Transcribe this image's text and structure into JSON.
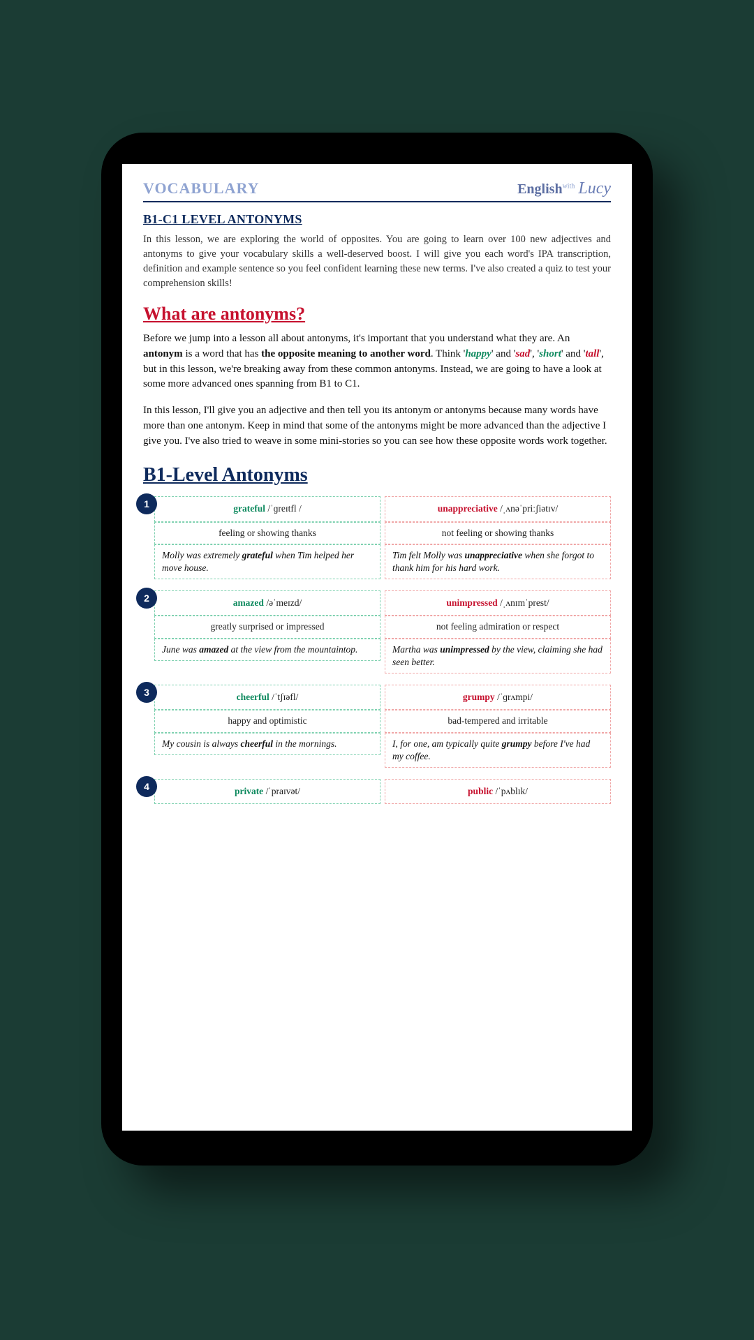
{
  "header": {
    "title": "VOCABULARY",
    "brand_main": "English",
    "brand_with": "with",
    "brand_name": "Lucy"
  },
  "page": {
    "title": "B1-C1 LEVEL ANTONYMS",
    "intro": "In this lesson, we are exploring the world of opposites. You are going to learn over 100 new adjectives and antonyms to give your vocabulary skills a well-deserved boost. I will give you each word's IPA transcription, definition and example sentence so you feel confident learning these new terms. I've also created a quiz to test your comprehension skills!"
  },
  "h_what": "What are antonyms?",
  "p1": {
    "a": "Before we jump into a lesson all about antonyms, it's important that you understand what they are. An ",
    "b": "antonym",
    "c": " is a word that has ",
    "d": "the opposite meaning to another word",
    "e": ". Think '",
    "happy": "happy",
    "f": "' and '",
    "sad": "sad",
    "g": "', '",
    "short": "short",
    "h": "' and '",
    "tall": "tall",
    "i": "', but in this lesson, we're breaking away from these common antonyms. Instead, we are going to have a look at some more advanced ones spanning from B1 to C1."
  },
  "p2": "In this lesson, I'll give you an adjective and then tell you its antonym or antonyms because many words have more than one antonym. Keep in mind that some of the antonyms might be more advanced than the adjective I give you. I've also tried to weave in some mini-stories so you can see how these opposite words work together.",
  "h_b1": "B1-Level Antonyms",
  "entries": [
    {
      "n": "1",
      "left": {
        "word": "grateful",
        "ipa": " /ˈɡreɪtfl / ",
        "def": "feeling or showing thanks",
        "ex_a": "Molly was extremely ",
        "ex_b": "grateful",
        "ex_c": " when Tim helped her move house."
      },
      "right": {
        "word": "unappreciative",
        "ipa": " /ˌʌnəˈpriːʃiətɪv/",
        "def": "not feeling or showing thanks",
        "ex_a": "Tim felt Molly was ",
        "ex_b": "unappreciative",
        "ex_c": " when she forgot to thank him for his hard work."
      }
    },
    {
      "n": "2",
      "left": {
        "word": "amazed",
        "ipa": " /əˈmeɪzd/",
        "def": "greatly surprised or impressed",
        "ex_a": "June was ",
        "ex_b": "amazed",
        "ex_c": " at the view from the mountaintop."
      },
      "right": {
        "word": "unimpressed",
        "ipa": " /ˌʌnɪmˈprest/",
        "def": "not feeling admiration or respect",
        "ex_a": "Martha was ",
        "ex_b": "unimpressed",
        "ex_c": " by the view, claiming she had seen better."
      }
    },
    {
      "n": "3",
      "left": {
        "word": "cheerful",
        "ipa": " /ˈtʃɪəfl/",
        "def": "happy and optimistic",
        "ex_a": "My cousin is always ",
        "ex_b": "cheerful",
        "ex_c": " in the mornings."
      },
      "right": {
        "word": "grumpy",
        "ipa": " /ˈɡrʌmpi/",
        "def": "bad-tempered and irritable",
        "ex_a": "I, for one, am typically quite ",
        "ex_b": "grumpy",
        "ex_c": " before I've had my coffee."
      }
    },
    {
      "n": "4",
      "left": {
        "word": "private",
        "ipa": " /ˈpraɪvət/",
        "def": "",
        "ex_a": "",
        "ex_b": "",
        "ex_c": ""
      },
      "right": {
        "word": "public",
        "ipa": " /ˈpʌblɪk/",
        "def": "",
        "ex_a": "",
        "ex_b": "",
        "ex_c": ""
      }
    }
  ]
}
